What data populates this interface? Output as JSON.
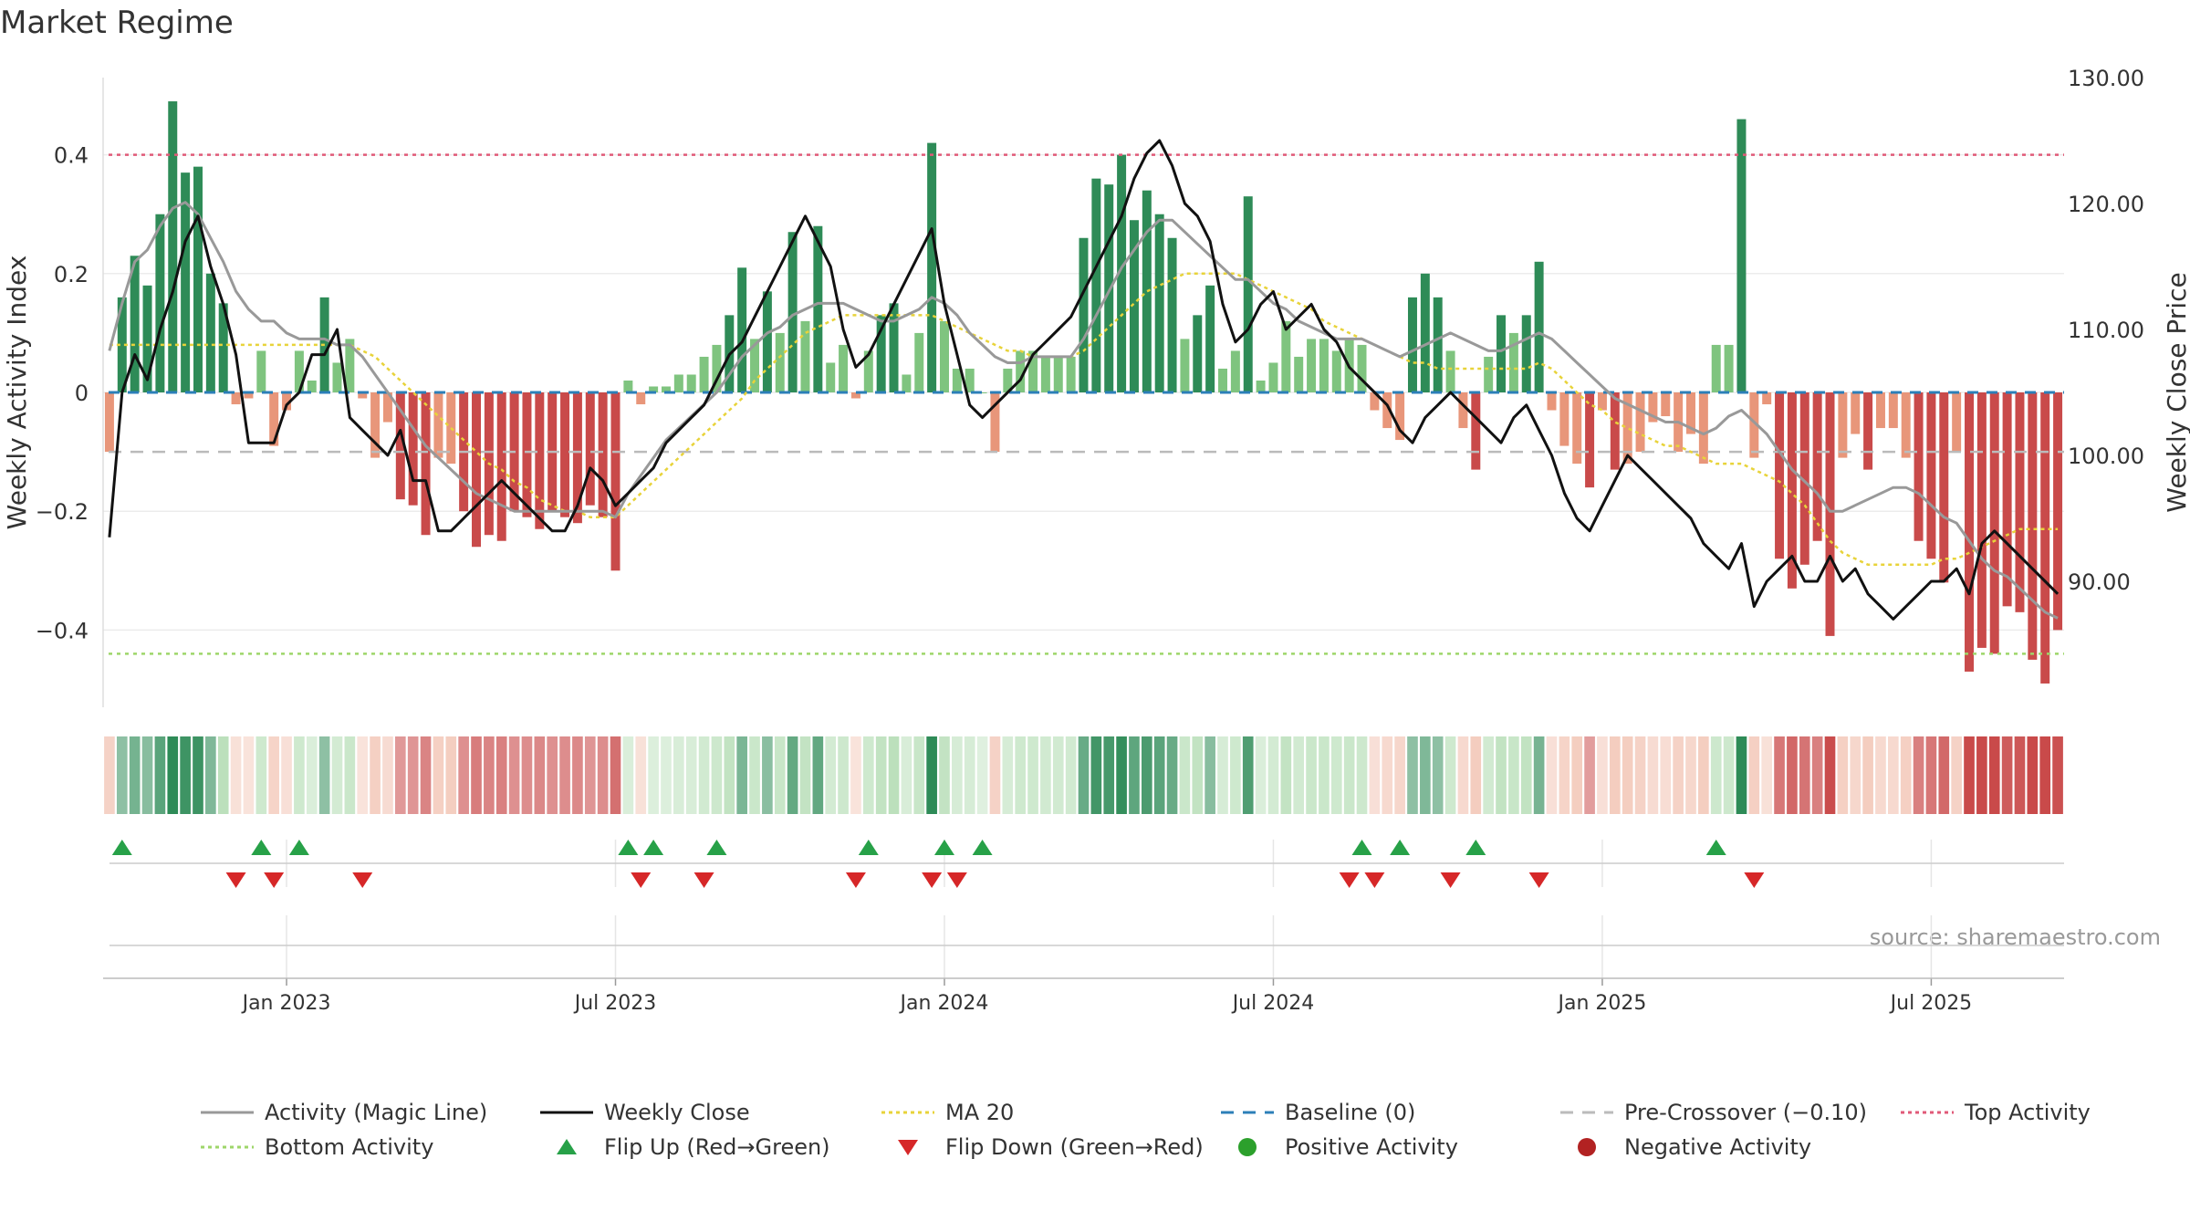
{
  "title": "Market Regime",
  "source": "source: sharemaestro.com",
  "colors": {
    "pos_strong": "#2e8b57",
    "pos_light": "#7fc47f",
    "neg_strong": "#c94a4a",
    "neg_light": "#e8967a",
    "magic": "#999999",
    "close": "#111111",
    "ma": "#e8d33a",
    "baseline": "#2c7fb8",
    "pre": "#bbbbbb",
    "top": "#e05a78",
    "bottom": "#9ed66a",
    "flip_up": "#27a148",
    "flip_down": "#d62728",
    "pos_dot": "#2ca02c",
    "neg_dot": "#b22222"
  },
  "chart_data": {
    "type": "bar",
    "title": "Market Regime",
    "ylabel_left": "Weekly Activity Index",
    "ylabel_right": "Weekly Close Price",
    "y_left_range": [
      -0.53,
      0.53
    ],
    "y_right_range": [
      80,
      130
    ],
    "y_left_ticks": [
      {
        "v": 0.4,
        "label": "0.4"
      },
      {
        "v": 0.2,
        "label": "0.2"
      },
      {
        "v": 0,
        "label": "0"
      },
      {
        "v": -0.2,
        "label": "−0.2"
      },
      {
        "v": -0.4,
        "label": "−0.4"
      }
    ],
    "y_right_ticks": [
      {
        "v": 130,
        "label": "130.00"
      },
      {
        "v": 120,
        "label": "120.00"
      },
      {
        "v": 110,
        "label": "110.00"
      },
      {
        "v": 100,
        "label": "100.00"
      },
      {
        "v": 90,
        "label": "90.00"
      }
    ],
    "x_ticks": [
      {
        "v": 14.5,
        "label": "Jan 2023"
      },
      {
        "v": 40.5,
        "label": "Jul 2023"
      },
      {
        "v": 66.5,
        "label": "Jan 2024"
      },
      {
        "v": 92.5,
        "label": "Jul 2024"
      },
      {
        "v": 118.5,
        "label": "Jan 2025"
      },
      {
        "v": 144.5,
        "label": "Jul 2025"
      }
    ],
    "thresholds": {
      "top": 0.4,
      "bottom": -0.44,
      "pre_crossover": -0.1,
      "baseline": 0
    },
    "activity": [
      -0.1,
      0.16,
      0.23,
      0.18,
      0.3,
      0.49,
      0.37,
      0.38,
      0.2,
      0.15,
      -0.02,
      -0.01,
      0.07,
      -0.09,
      -0.03,
      0.07,
      0.02,
      0.16,
      0.05,
      0.09,
      -0.01,
      -0.11,
      -0.05,
      -0.18,
      -0.19,
      -0.24,
      -0.11,
      -0.12,
      -0.2,
      -0.26,
      -0.24,
      -0.25,
      -0.2,
      -0.21,
      -0.23,
      -0.2,
      -0.21,
      -0.22,
      -0.19,
      -0.21,
      -0.3,
      0.02,
      -0.02,
      0.01,
      0.01,
      0.03,
      0.03,
      0.06,
      0.08,
      0.13,
      0.21,
      0.09,
      0.17,
      0.1,
      0.27,
      0.12,
      0.28,
      0.05,
      0.08,
      -0.01,
      0.07,
      0.13,
      0.15,
      0.03,
      0.1,
      0.42,
      0.12,
      0.04,
      0.04,
      0.0,
      -0.1,
      0.04,
      0.07,
      0.07,
      0.06,
      0.06,
      0.06,
      0.26,
      0.36,
      0.35,
      0.4,
      0.29,
      0.34,
      0.3,
      0.26,
      0.09,
      0.13,
      0.18,
      0.04,
      0.07,
      0.33,
      0.02,
      0.05,
      0.12,
      0.06,
      0.09,
      0.09,
      0.07,
      0.09,
      0.08,
      -0.03,
      -0.06,
      -0.08,
      0.16,
      0.2,
      0.16,
      0.07,
      -0.06,
      -0.13,
      0.06,
      0.13,
      0.1,
      0.13,
      0.22,
      -0.03,
      -0.09,
      -0.12,
      -0.16,
      -0.03,
      -0.13,
      -0.12,
      -0.1,
      -0.05,
      -0.04,
      -0.1,
      -0.07,
      -0.12,
      0.08,
      0.08,
      0.46,
      -0.11,
      -0.02,
      -0.28,
      -0.33,
      -0.29,
      -0.25,
      -0.41,
      -0.11,
      -0.07,
      -0.13,
      -0.06,
      -0.06,
      -0.11,
      -0.25,
      -0.28,
      -0.32,
      -0.1,
      -0.47,
      -0.43,
      -0.44,
      -0.36,
      -0.37,
      -0.45,
      -0.49,
      -0.4
    ],
    "close": [
      93.5,
      105,
      108,
      106,
      110,
      113,
      117,
      119,
      115,
      112,
      108,
      101,
      101,
      101,
      104,
      105,
      108,
      108,
      110,
      103,
      102,
      101,
      100,
      102,
      98,
      98,
      94,
      94,
      95,
      96,
      97,
      98,
      97,
      96,
      95,
      94,
      94,
      96,
      99,
      98,
      96,
      97,
      98,
      99,
      101,
      102,
      103,
      104,
      106,
      108,
      109,
      111,
      113,
      115,
      117,
      119,
      117,
      115,
      110,
      107,
      108,
      110,
      112,
      114,
      116,
      118,
      112,
      108,
      104,
      103,
      104,
      105,
      106,
      108,
      109,
      110,
      111,
      113,
      115,
      117,
      119,
      122,
      124,
      125,
      123,
      120,
      119,
      117,
      112,
      109,
      110,
      112,
      113,
      110,
      111,
      112,
      110,
      109,
      107,
      106,
      105,
      104,
      102,
      101,
      103,
      104,
      105,
      104,
      103,
      102,
      101,
      103,
      104,
      102,
      100,
      97,
      95,
      94,
      96,
      98,
      100,
      99,
      98,
      97,
      96,
      95,
      93,
      92,
      91,
      93,
      88,
      90,
      91,
      92,
      90,
      90,
      92,
      90,
      91,
      89,
      88,
      87,
      88,
      89,
      90,
      90,
      91,
      89,
      93,
      94,
      93,
      92,
      91,
      90,
      89
    ],
    "magic": [
      0.07,
      0.15,
      0.22,
      0.24,
      0.28,
      0.31,
      0.32,
      0.3,
      0.26,
      0.22,
      0.17,
      0.14,
      0.12,
      0.12,
      0.1,
      0.09,
      0.09,
      0.09,
      0.08,
      0.08,
      0.06,
      0.03,
      0.0,
      -0.03,
      -0.06,
      -0.09,
      -0.11,
      -0.13,
      -0.15,
      -0.17,
      -0.18,
      -0.19,
      -0.2,
      -0.2,
      -0.2,
      -0.2,
      -0.2,
      -0.2,
      -0.2,
      -0.2,
      -0.21,
      -0.17,
      -0.14,
      -0.11,
      -0.08,
      -0.06,
      -0.04,
      -0.02,
      0.0,
      0.03,
      0.06,
      0.08,
      0.1,
      0.11,
      0.13,
      0.14,
      0.15,
      0.15,
      0.15,
      0.14,
      0.13,
      0.12,
      0.12,
      0.13,
      0.14,
      0.16,
      0.15,
      0.13,
      0.1,
      0.08,
      0.06,
      0.05,
      0.05,
      0.06,
      0.06,
      0.06,
      0.06,
      0.09,
      0.13,
      0.17,
      0.21,
      0.24,
      0.27,
      0.29,
      0.29,
      0.27,
      0.25,
      0.23,
      0.21,
      0.19,
      0.19,
      0.17,
      0.15,
      0.14,
      0.12,
      0.11,
      0.1,
      0.09,
      0.09,
      0.09,
      0.08,
      0.07,
      0.06,
      0.07,
      0.08,
      0.09,
      0.1,
      0.09,
      0.08,
      0.07,
      0.07,
      0.08,
      0.09,
      0.1,
      0.09,
      0.07,
      0.05,
      0.03,
      0.01,
      -0.01,
      -0.02,
      -0.03,
      -0.04,
      -0.05,
      -0.05,
      -0.06,
      -0.07,
      -0.06,
      -0.04,
      -0.03,
      -0.05,
      -0.07,
      -0.1,
      -0.13,
      -0.15,
      -0.17,
      -0.2,
      -0.2,
      -0.19,
      -0.18,
      -0.17,
      -0.16,
      -0.16,
      -0.17,
      -0.19,
      -0.21,
      -0.22,
      -0.25,
      -0.28,
      -0.3,
      -0.31,
      -0.33,
      -0.35,
      -0.37,
      -0.38
    ],
    "ma20": [
      0.08,
      0.08,
      0.08,
      0.08,
      0.08,
      0.08,
      0.08,
      0.08,
      0.08,
      0.08,
      0.08,
      0.08,
      0.08,
      0.08,
      0.08,
      0.08,
      0.08,
      0.08,
      0.08,
      0.08,
      0.07,
      0.06,
      0.04,
      0.02,
      0.0,
      -0.02,
      -0.04,
      -0.06,
      -0.08,
      -0.1,
      -0.12,
      -0.13,
      -0.15,
      -0.16,
      -0.18,
      -0.19,
      -0.2,
      -0.2,
      -0.21,
      -0.21,
      -0.21,
      -0.19,
      -0.17,
      -0.15,
      -0.13,
      -0.11,
      -0.09,
      -0.07,
      -0.05,
      -0.03,
      -0.01,
      0.02,
      0.04,
      0.06,
      0.08,
      0.1,
      0.11,
      0.12,
      0.13,
      0.13,
      0.13,
      0.13,
      0.13,
      0.13,
      0.13,
      0.13,
      0.12,
      0.11,
      0.1,
      0.09,
      0.08,
      0.07,
      0.07,
      0.06,
      0.06,
      0.06,
      0.06,
      0.07,
      0.09,
      0.11,
      0.13,
      0.15,
      0.17,
      0.18,
      0.19,
      0.2,
      0.2,
      0.2,
      0.2,
      0.2,
      0.19,
      0.18,
      0.17,
      0.16,
      0.15,
      0.14,
      0.12,
      0.11,
      0.1,
      0.09,
      0.08,
      0.07,
      0.06,
      0.05,
      0.05,
      0.04,
      0.04,
      0.04,
      0.04,
      0.04,
      0.04,
      0.04,
      0.04,
      0.05,
      0.04,
      0.02,
      0.0,
      -0.02,
      -0.03,
      -0.05,
      -0.06,
      -0.07,
      -0.08,
      -0.09,
      -0.09,
      -0.1,
      -0.11,
      -0.12,
      -0.12,
      -0.12,
      -0.13,
      -0.14,
      -0.15,
      -0.17,
      -0.19,
      -0.22,
      -0.25,
      -0.27,
      -0.28,
      -0.29,
      -0.29,
      -0.29,
      -0.29,
      -0.29,
      -0.29,
      -0.28,
      -0.28,
      -0.27,
      -0.26,
      -0.25,
      -0.24,
      -0.23,
      -0.23,
      -0.23,
      -0.23
    ],
    "flips_up": [
      1,
      12,
      15,
      41,
      43,
      48,
      60,
      66,
      69,
      99,
      102,
      108,
      127
    ],
    "flips_down": [
      10,
      13,
      20,
      42,
      47,
      59,
      65,
      67,
      98,
      100,
      106,
      113,
      130
    ],
    "legend": [
      {
        "label": "Activity (Magic Line)",
        "kind": "line",
        "color": "#999999"
      },
      {
        "label": "Weekly Close",
        "kind": "line",
        "color": "#111111"
      },
      {
        "label": "MA 20",
        "kind": "dotted",
        "color": "#e8d33a"
      },
      {
        "label": "Baseline (0)",
        "kind": "dashed",
        "color": "#2c7fb8"
      },
      {
        "label": "Pre-Crossover (−0.10)",
        "kind": "dashed",
        "color": "#bbbbbb"
      },
      {
        "label": "Top Activity",
        "kind": "dotted",
        "color": "#e05a78"
      },
      {
        "label": "Bottom Activity",
        "kind": "dotted",
        "color": "#9ed66a"
      },
      {
        "label": "Flip Up (Red→Green)",
        "kind": "tri-up",
        "color": "#27a148"
      },
      {
        "label": "Flip Down (Green→Red)",
        "kind": "tri-down",
        "color": "#d62728"
      },
      {
        "label": "Positive Activity",
        "kind": "dot",
        "color": "#2ca02c"
      },
      {
        "label": "Negative Activity",
        "kind": "dot",
        "color": "#b22222"
      }
    ]
  }
}
